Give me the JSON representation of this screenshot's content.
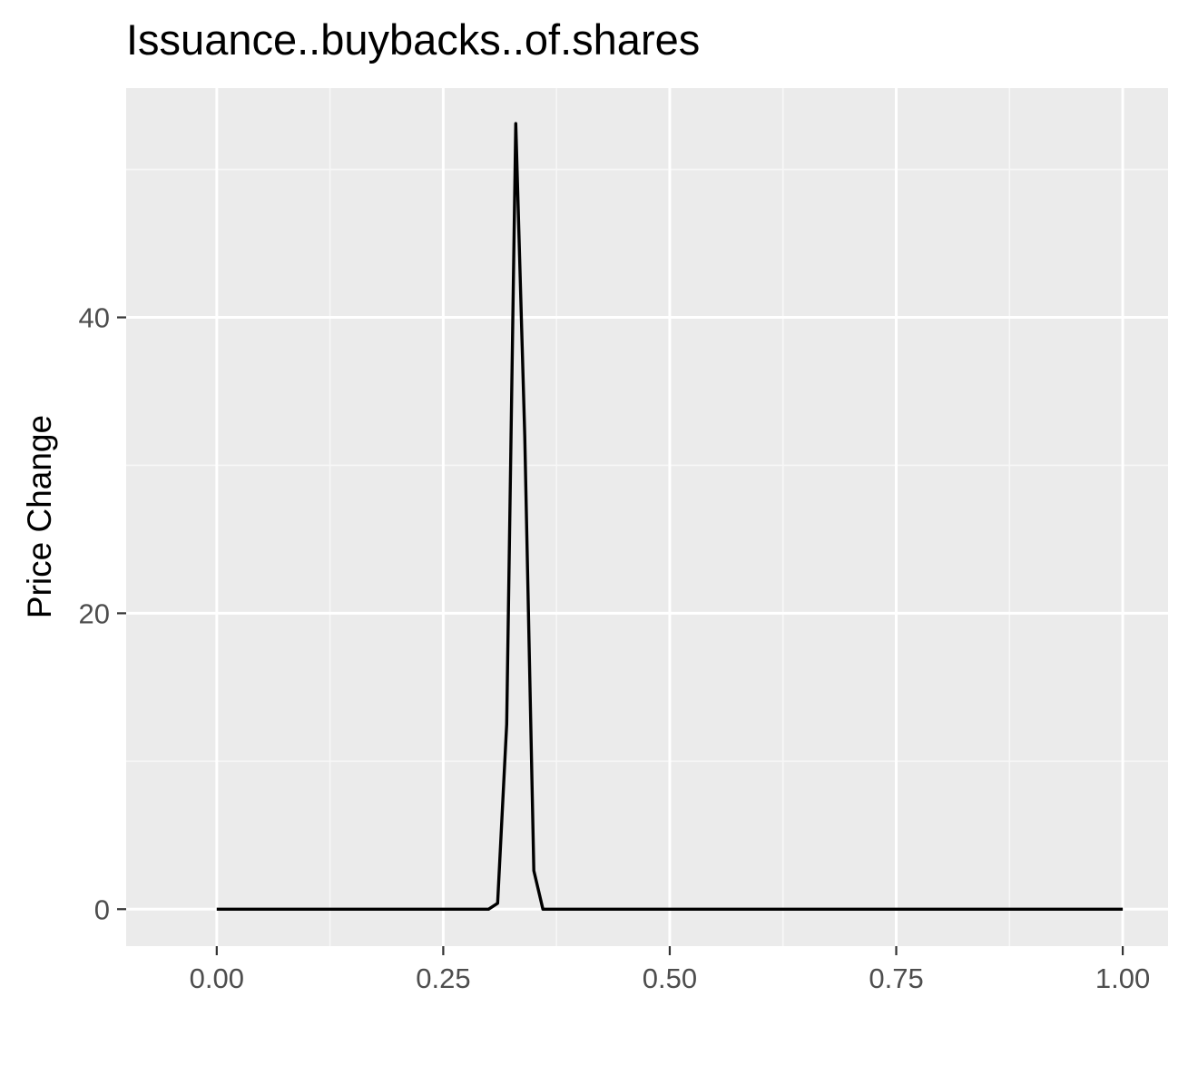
{
  "chart_data": {
    "type": "line",
    "title": "Issuance..buybacks..of.shares",
    "xlabel": "",
    "ylabel": "Price Change",
    "xlim": [
      -0.1,
      1.05
    ],
    "ylim": [
      -2.5,
      55.5
    ],
    "x_ticks": [
      0.0,
      0.25,
      0.5,
      0.75,
      1.0
    ],
    "x_tick_labels": [
      "0.00",
      "0.25",
      "0.50",
      "0.75",
      "1.00"
    ],
    "y_ticks": [
      0,
      20,
      40
    ],
    "y_tick_labels": [
      "0",
      "20",
      "40"
    ],
    "grid": true,
    "legend": "none",
    "colors": {
      "panel_background": "#ebebeb",
      "grid_major": "#ffffff",
      "grid_minor": "#f7f7f7",
      "line": "#000000",
      "tick_text": "#4d4d4d",
      "tick_mark": "#333333"
    },
    "series": [
      {
        "x": [
          0.0,
          0.05,
          0.1,
          0.15,
          0.2,
          0.25,
          0.3,
          0.31,
          0.32,
          0.33,
          0.34,
          0.35,
          0.36,
          0.4,
          0.5,
          0.6,
          0.7,
          0.8,
          0.9,
          1.0
        ],
        "values": [
          0,
          0,
          0,
          0,
          0,
          0,
          0,
          0.4,
          12.5,
          53.1,
          32.0,
          2.6,
          0,
          0,
          0,
          0,
          0,
          0,
          0,
          0
        ]
      }
    ]
  }
}
